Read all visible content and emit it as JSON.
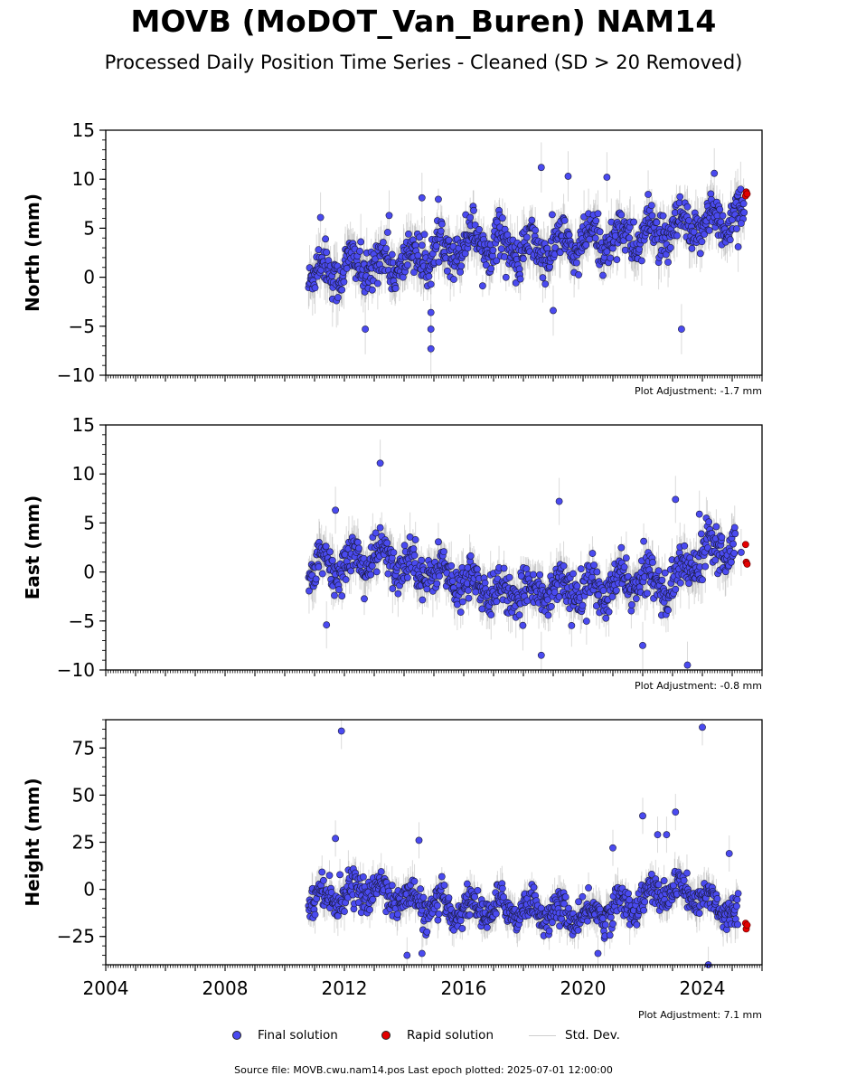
{
  "title": "MOVB (MoDOT_Van_Buren) NAM14",
  "subtitle": "Processed Daily Position Time Series - Cleaned (SD > 20 Removed)",
  "legend": {
    "final": "Final solution",
    "rapid": "Rapid solution",
    "std": "Std. Dev."
  },
  "source": "Source file: MOVB.cwu.nam14.pos  Last epoch plotted: 2025-07-01 12:00:00",
  "colors": {
    "final": "#4a4af0",
    "rapid": "#e30000",
    "std": "#b0b0b0"
  },
  "chart_data": [
    {
      "type": "scatter",
      "ylabel": "North (mm)",
      "ylim": [
        -10,
        15
      ],
      "yticks": [
        -10,
        -5,
        0,
        5,
        10,
        15
      ],
      "xlim": [
        2004,
        2026
      ],
      "adjustment": "Plot Adjustment: -1.7 mm",
      "series": [
        {
          "name": "Final solution",
          "trend": [
            [
              2010.8,
              0.5
            ],
            [
              2014,
              1.5
            ],
            [
              2016.5,
              4
            ],
            [
              2018,
              2.5
            ],
            [
              2021,
              4
            ],
            [
              2023,
              4.5
            ],
            [
              2025.4,
              6.5
            ]
          ],
          "scatter_sd": 1.6
        },
        {
          "name": "Rapid solution",
          "points": [
            [
              2025.45,
              8.3
            ],
            [
              2025.47,
              8.7
            ],
            [
              2025.5,
              8.5
            ]
          ]
        }
      ],
      "outliers": [
        [
          2011.2,
          6.1
        ],
        [
          2012.7,
          -5.3
        ],
        [
          2013.5,
          6.3
        ],
        [
          2014.6,
          8.1
        ],
        [
          2014.9,
          -3.6
        ],
        [
          2014.9,
          -7.3
        ],
        [
          2014.9,
          -5.3
        ],
        [
          2018.6,
          11.2
        ],
        [
          2019.0,
          -3.4
        ],
        [
          2019.5,
          10.3
        ],
        [
          2020.8,
          10.2
        ],
        [
          2023.3,
          -5.3
        ],
        [
          2024.4,
          10.6
        ],
        [
          2025.3,
          5.5
        ],
        [
          2025.2,
          3.1
        ]
      ]
    },
    {
      "type": "scatter",
      "ylabel": "East (mm)",
      "ylim": [
        -10,
        15
      ],
      "yticks": [
        -10,
        -5,
        0,
        5,
        10,
        15
      ],
      "xlim": [
        2004,
        2026
      ],
      "adjustment": "Plot Adjustment: -0.8 mm",
      "series": [
        {
          "name": "Final solution",
          "trend": [
            [
              2010.8,
              0.0
            ],
            [
              2013,
              1.5
            ],
            [
              2015,
              0.0
            ],
            [
              2017.5,
              -2.5
            ],
            [
              2019,
              -1.5
            ],
            [
              2020.5,
              -2.0
            ],
            [
              2022,
              -0.5
            ],
            [
              2023,
              -1.5
            ],
            [
              2024,
              2.5
            ],
            [
              2025.1,
              3.0
            ]
          ],
          "scatter_sd": 1.5
        },
        {
          "name": "Rapid solution",
          "points": [
            [
              2025.45,
              2.8
            ],
            [
              2025.47,
              1.0
            ],
            [
              2025.5,
              0.8
            ]
          ]
        }
      ],
      "outliers": [
        [
          2011.7,
          6.3
        ],
        [
          2013.2,
          11.1
        ],
        [
          2011.4,
          -5.4
        ],
        [
          2018.6,
          -8.5
        ],
        [
          2019.2,
          7.2
        ],
        [
          2022.0,
          -7.5
        ],
        [
          2023.1,
          7.4
        ],
        [
          2023.5,
          -9.5
        ],
        [
          2023.9,
          5.9
        ],
        [
          2025.3,
          2.0
        ],
        [
          2024.0,
          -0.8
        ]
      ]
    },
    {
      "type": "scatter",
      "ylabel": "Height (mm)",
      "ylim": [
        -40,
        90
      ],
      "yticks": [
        -25,
        0,
        25,
        50,
        75
      ],
      "xlim": [
        2004,
        2026
      ],
      "xticks": [
        2004,
        2008,
        2012,
        2016,
        2020,
        2024
      ],
      "adjustment": "Plot Adjustment: 7.1 mm",
      "series": [
        {
          "name": "Final solution",
          "trend": [
            [
              2010.8,
              -5
            ],
            [
              2013,
              0
            ],
            [
              2015,
              -10
            ],
            [
              2018,
              -10
            ],
            [
              2020,
              -15
            ],
            [
              2021.5,
              -8
            ],
            [
              2023,
              0
            ],
            [
              2024,
              -5
            ],
            [
              2025.2,
              -12
            ]
          ],
          "scatter_sd": 6
        },
        {
          "name": "Rapid solution",
          "points": [
            [
              2025.45,
              -18
            ],
            [
              2025.47,
              -21
            ],
            [
              2025.5,
              -19
            ]
          ]
        }
      ],
      "outliers": [
        [
          2011.9,
          84
        ],
        [
          2024.0,
          86
        ],
        [
          2011.7,
          27
        ],
        [
          2014.5,
          26
        ],
        [
          2021.0,
          22
        ],
        [
          2022.0,
          39
        ],
        [
          2022.5,
          29
        ],
        [
          2022.8,
          29
        ],
        [
          2023.1,
          41
        ],
        [
          2024.9,
          19
        ],
        [
          2014.1,
          -35
        ],
        [
          2014.6,
          -34
        ],
        [
          2020.5,
          -34
        ],
        [
          2024.2,
          -40
        ]
      ]
    }
  ]
}
